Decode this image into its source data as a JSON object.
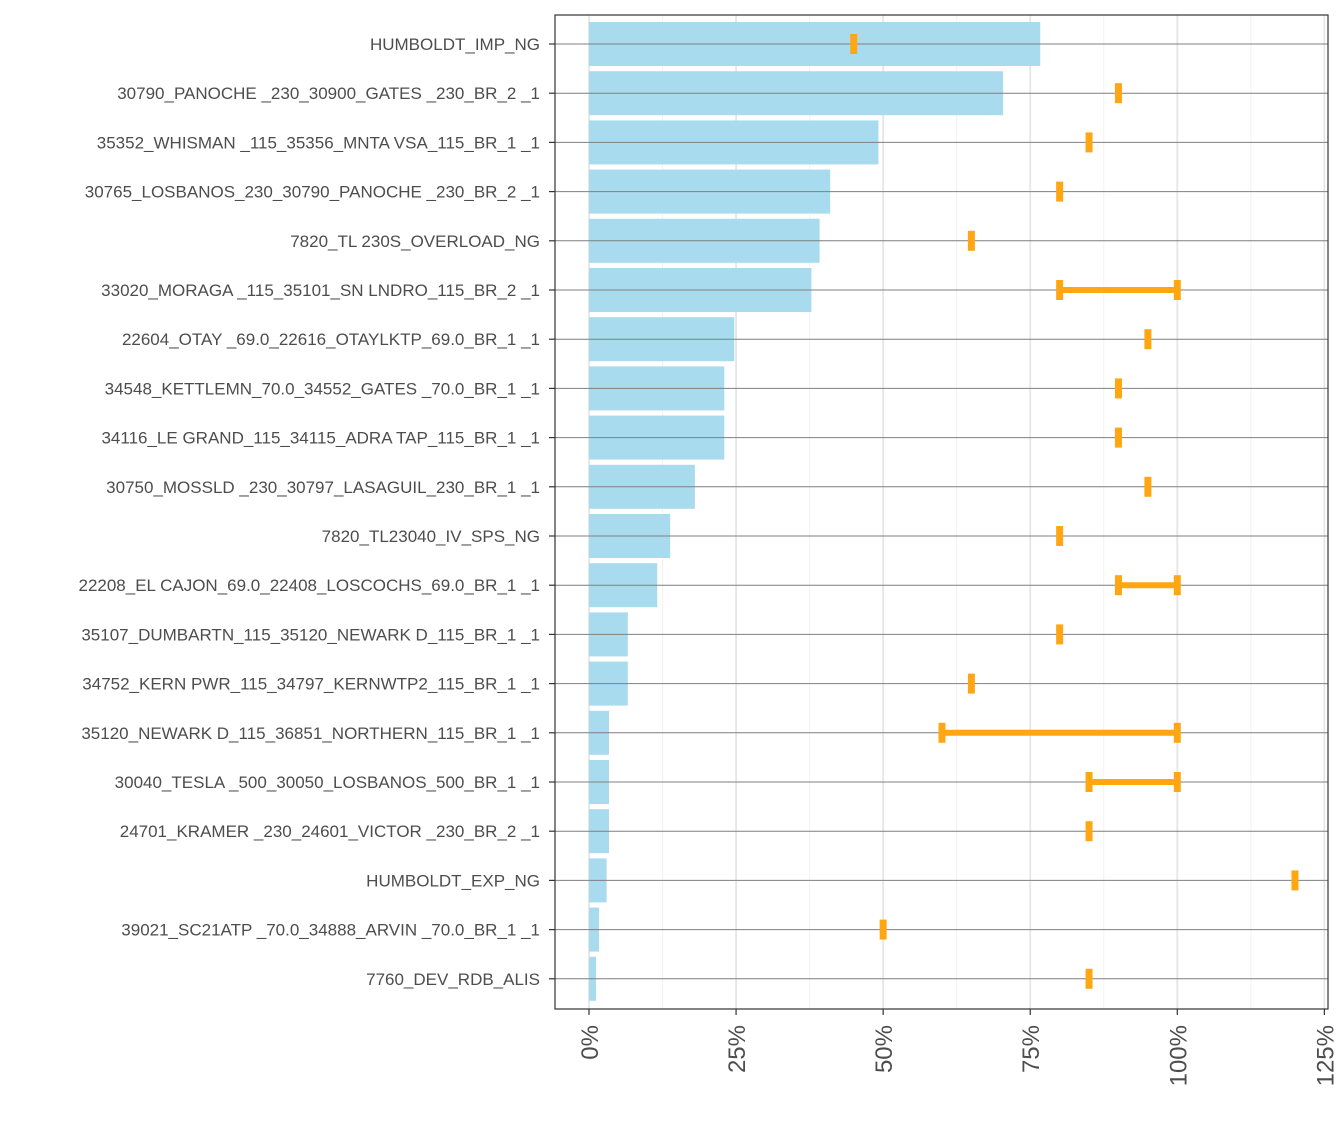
{
  "chart_data": {
    "type": "bar",
    "orientation": "horizontal",
    "categories": [
      "HUMBOLDT_IMP_NG",
      "30790_PANOCHE _230_30900_GATES    _230_BR_2 _1",
      "35352_WHISMAN _115_35356_MNTA VSA_115_BR_1 _1",
      "30765_LOSBANOS_230_30790_PANOCHE _230_BR_2 _1",
      "7820_TL 230S_OVERLOAD_NG",
      "33020_MORAGA  _115_35101_SN LNDRO_115_BR_2 _1",
      "22604_OTAY     _69.0_22616_OTAYLKTP_69.0_BR_1 _1",
      "34548_KETTLEMN_70.0_34552_GATES   _70.0_BR_1 _1",
      "34116_LE GRAND_115_34115_ADRA TAP_115_BR_1 _1",
      "30750_MOSSLD  _230_30797_LASAGUIL_230_BR_1 _1",
      "7820_TL23040_IV_SPS_NG",
      "22208_EL CAJON_69.0_22408_LOSCOCHS_69.0_BR_1 _1",
      "35107_DUMBARTN_115_35120_NEWARK D_115_BR_1 _1",
      "34752_KERN PWR_115_34797_KERNWTP2_115_BR_1 _1",
      "35120_NEWARK D_115_36851_NORTHERN_115_BR_1 _1",
      "30040_TESLA   _500_30050_LOSBANOS_500_BR_1 _1",
      "24701_KRAMER  _230_24601_VICTOR  _230_BR_2 _1",
      "HUMBOLDT_EXP_NG",
      "39021_SC21ATP _70.0_34888_ARVIN   _70.0_BR_1 _1",
      "7760_DEV_RDB_ALIS"
    ],
    "values": [
      76.7,
      70.4,
      49.2,
      41.0,
      39.2,
      37.8,
      24.7,
      23.0,
      23.0,
      18.0,
      13.8,
      11.6,
      6.6,
      6.6,
      3.4,
      3.4,
      3.4,
      3.0,
      1.7,
      1.2
    ],
    "ranges": [
      [
        45,
        45
      ],
      [
        90,
        90
      ],
      [
        85,
        85
      ],
      [
        80,
        80
      ],
      [
        65,
        65
      ],
      [
        80,
        100
      ],
      [
        95,
        95
      ],
      [
        90,
        90
      ],
      [
        90,
        90
      ],
      [
        95,
        95
      ],
      [
        80,
        80
      ],
      [
        90,
        100
      ],
      [
        80,
        80
      ],
      [
        65,
        65
      ],
      [
        60,
        100
      ],
      [
        85,
        100
      ],
      [
        85,
        85
      ],
      [
        120,
        120
      ],
      [
        50,
        50
      ],
      [
        85,
        85
      ]
    ],
    "xlim": [
      -6,
      125.5
    ],
    "xticks": [
      0,
      25,
      50,
      75,
      100,
      125
    ],
    "xtick_labels": [
      "0%",
      "25%",
      "50%",
      "75%",
      "100%",
      "125%"
    ],
    "grid": true,
    "colors": {
      "bar": "#a9dbef",
      "range": "#ffa612",
      "grid_major": "#e6e6e6",
      "grid_minor": "#f2f2f2",
      "row_line": "#7f7f7f",
      "axis": "#333333"
    }
  }
}
